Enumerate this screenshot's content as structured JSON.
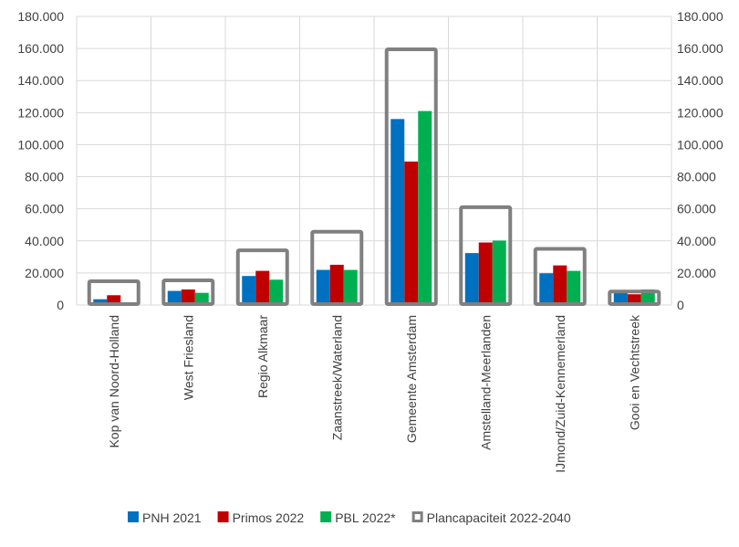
{
  "chart_data": {
    "type": "bar",
    "title": "",
    "xlabel": "",
    "ylabel": "",
    "ylim": [
      0,
      180000
    ],
    "yticks": [
      0,
      20000,
      40000,
      60000,
      80000,
      100000,
      120000,
      140000,
      160000,
      180000
    ],
    "ytick_labels": [
      "0",
      "20.000",
      "40.000",
      "60.000",
      "80.000",
      "100.000",
      "120.000",
      "140.000",
      "160.000",
      "180.000"
    ],
    "grid": true,
    "legend_position": "bottom",
    "categories": [
      "Kop van Noord-Holland",
      "West Friesland",
      "Regio Alkmaar",
      "Zaanstreek/Waterland",
      "Gemeente Amsterdam",
      "Amstelland-Meerlanden",
      "IJmond/Zuid-Kennemerland",
      "Gooi en Vechtstreek"
    ],
    "series": [
      {
        "name": "PNH 2021",
        "color": "#0070C0",
        "values": [
          3600,
          8800,
          18100,
          21900,
          116000,
          32400,
          19800,
          8500
        ]
      },
      {
        "name": "Primos 2022",
        "color": "#C00000",
        "values": [
          6100,
          9700,
          21300,
          25100,
          89500,
          39000,
          24700,
          6700
        ]
      },
      {
        "name": "PBL 2022*",
        "color": "#00B050",
        "values": [
          1000,
          7600,
          15800,
          21900,
          121000,
          40200,
          21300,
          9700
        ]
      },
      {
        "name": "Plancapaciteit 2022-2040",
        "color": "#808080",
        "style": "outline",
        "values": [
          14800,
          15400,
          34100,
          45700,
          159500,
          61000,
          35000,
          8400
        ]
      }
    ]
  }
}
